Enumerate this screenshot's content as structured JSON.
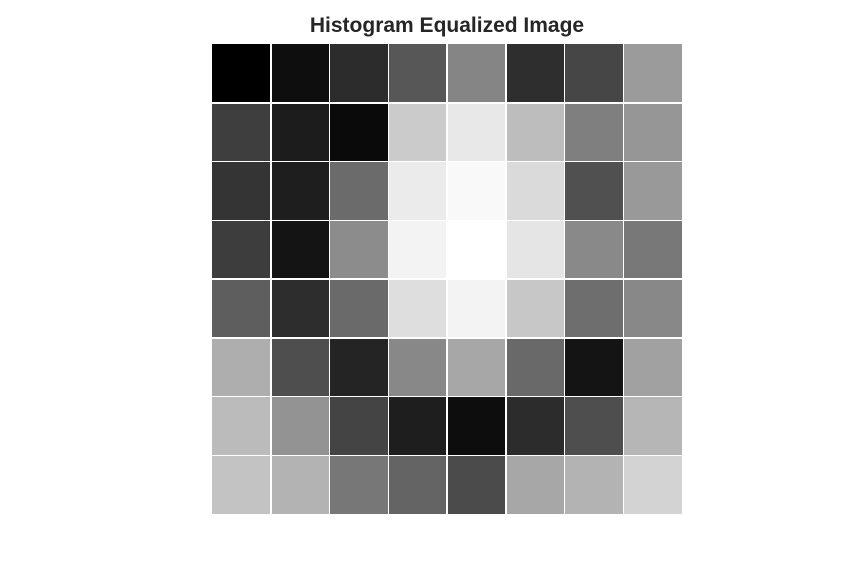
{
  "chart_data": {
    "type": "heatmap",
    "title": "Histogram Equalized Image",
    "colormap": "gray",
    "value_range": [
      0,
      255
    ],
    "rows": 8,
    "cols": 8,
    "values": [
      [
        0,
        14,
        44,
        87,
        133,
        46,
        70,
        155
      ],
      [
        62,
        28,
        10,
        203,
        232,
        189,
        127,
        150
      ],
      [
        52,
        30,
        107,
        235,
        249,
        218,
        80,
        153
      ],
      [
        61,
        20,
        140,
        243,
        255,
        229,
        137,
        120
      ],
      [
        94,
        45,
        106,
        222,
        243,
        199,
        110,
        136
      ],
      [
        174,
        78,
        36,
        136,
        167,
        105,
        20,
        161
      ],
      [
        187,
        147,
        68,
        30,
        13,
        44,
        78,
        182
      ],
      [
        195,
        179,
        119,
        100,
        75,
        167,
        179,
        211
      ]
    ]
  }
}
